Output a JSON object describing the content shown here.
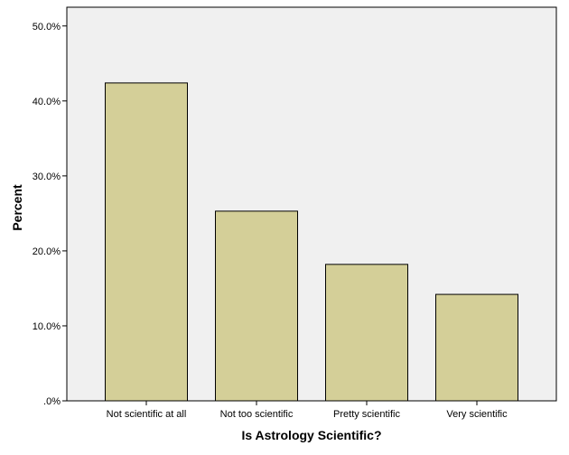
{
  "chart_data": {
    "type": "bar",
    "title": "",
    "xlabel": "Is Astrology Scientific?",
    "ylabel": "Percent",
    "categories": [
      "Not scientific at all",
      "Not too scientific",
      "Pretty scientific",
      "Very scientific"
    ],
    "values": [
      42.4,
      25.3,
      18.2,
      14.2
    ],
    "ylim": [
      0,
      52.5
    ],
    "yticks": [
      0,
      10,
      20,
      30,
      40,
      50
    ],
    "ytick_labels": [
      ".0%",
      "10.0%",
      "20.0%",
      "30.0%",
      "40.0%",
      "50.0%"
    ],
    "grid": false,
    "legend": "none",
    "colors": {
      "bar_fill": "#d4cf98",
      "bar_stroke": "#000000",
      "plot_background": "#f0f0f0",
      "page_background": "#ffffff"
    }
  }
}
